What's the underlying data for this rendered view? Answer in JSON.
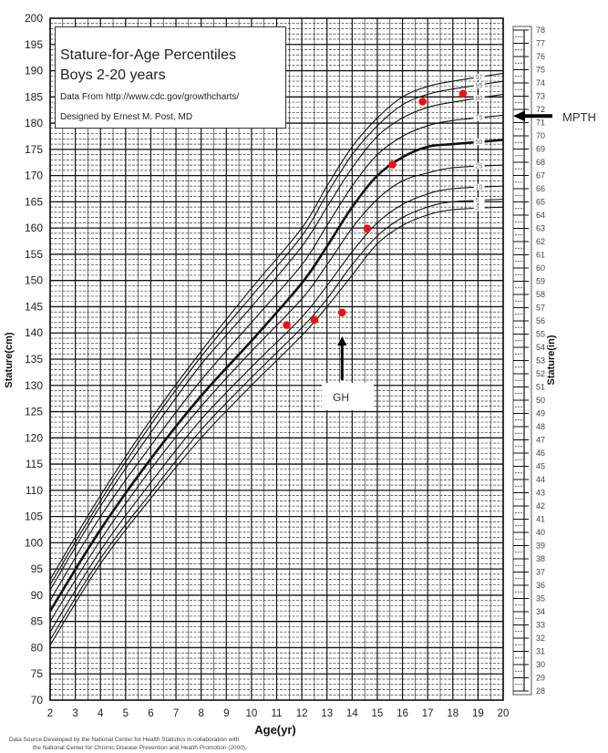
{
  "chart_data": {
    "type": "line",
    "title": "Stature-for-Age Percentiles",
    "subtitle": "Boys 2-20 years",
    "credits": [
      "Data From http://www.cdc.gov/growthcharts/",
      "Designed by Ernest M. Post, MD"
    ],
    "xlabel": "Age(yr)",
    "ylabel": "Stature(cm)",
    "y2label": "Stature(in)",
    "xlim": [
      2,
      20
    ],
    "ylim": [
      70,
      200
    ],
    "y2lim": [
      28,
      78
    ],
    "x_ticks": [
      2,
      3,
      4,
      5,
      6,
      7,
      8,
      9,
      10,
      11,
      12,
      13,
      14,
      15,
      16,
      17,
      18,
      19,
      20
    ],
    "y_ticks": [
      70,
      75,
      80,
      85,
      90,
      95,
      100,
      105,
      110,
      115,
      120,
      125,
      130,
      135,
      140,
      145,
      150,
      155,
      160,
      165,
      170,
      175,
      180,
      185,
      190,
      195,
      200
    ],
    "y2_ticks": [
      28,
      29,
      30,
      31,
      32,
      33,
      34,
      35,
      36,
      37,
      38,
      39,
      40,
      41,
      42,
      43,
      44,
      45,
      46,
      47,
      48,
      49,
      50,
      51,
      52,
      53,
      54,
      55,
      56,
      57,
      58,
      59,
      60,
      61,
      62,
      63,
      64,
      65,
      66,
      67,
      68,
      69,
      70,
      71,
      72,
      73,
      74,
      75,
      76,
      77,
      78
    ],
    "grid": true,
    "percentile_curves": [
      {
        "name": "3",
        "x": [
          2,
          4,
          6,
          8,
          10,
          12,
          13,
          14,
          15,
          16,
          17,
          18,
          20
        ],
        "y": [
          80.5,
          96,
          108.5,
          120,
          130,
          139.5,
          145,
          151,
          157,
          160.5,
          162.5,
          163.5,
          164
        ]
      },
      {
        "name": "5",
        "x": [
          2,
          4,
          6,
          8,
          10,
          12,
          13,
          14,
          15,
          16,
          17,
          18,
          20
        ],
        "y": [
          81.5,
          97,
          109.5,
          121.5,
          131.5,
          141,
          146.5,
          153,
          158.5,
          162,
          164,
          165,
          165.5
        ]
      },
      {
        "name": "10",
        "x": [
          2,
          4,
          6,
          8,
          10,
          12,
          13,
          14,
          15,
          16,
          17,
          18,
          20
        ],
        "y": [
          83,
          98.5,
          111.5,
          123.5,
          133.5,
          143,
          149,
          155.5,
          161,
          164.5,
          166.5,
          167.5,
          168
        ]
      },
      {
        "name": "25",
        "x": [
          2,
          4,
          6,
          8,
          10,
          12,
          13,
          14,
          15,
          16,
          17,
          18,
          20
        ],
        "y": [
          85,
          100.5,
          114,
          126,
          136.5,
          146.5,
          153,
          160,
          165.5,
          169,
          170.5,
          171.5,
          172
        ]
      },
      {
        "name": "50",
        "x": [
          2,
          4,
          6,
          8,
          10,
          12,
          13,
          14,
          15,
          16,
          17,
          18,
          20
        ],
        "y": [
          87,
          102.5,
          116,
          128,
          138.5,
          149.5,
          156.5,
          164,
          170,
          173.5,
          175.5,
          176,
          176.8
        ]
      },
      {
        "name": "75",
        "x": [
          2,
          4,
          6,
          8,
          10,
          12,
          13,
          14,
          15,
          16,
          17,
          18,
          20
        ],
        "y": [
          89,
          105,
          118.5,
          131,
          142,
          153,
          160.5,
          168,
          174,
          177.5,
          179.5,
          180.5,
          181.5
        ]
      },
      {
        "name": "90",
        "x": [
          2,
          4,
          6,
          8,
          10,
          12,
          13,
          14,
          15,
          16,
          17,
          18,
          20
        ],
        "y": [
          91,
          107,
          121,
          134,
          145,
          156.5,
          164,
          171.5,
          177.5,
          181,
          183,
          184,
          185.5
        ]
      },
      {
        "name": "95",
        "x": [
          2,
          4,
          6,
          8,
          10,
          12,
          13,
          14,
          15,
          16,
          17,
          18,
          20
        ],
        "y": [
          92,
          108,
          122.5,
          135.5,
          147,
          158.5,
          166.5,
          174,
          179.5,
          183.5,
          185.5,
          186.5,
          188
        ]
      },
      {
        "name": "97",
        "x": [
          2,
          4,
          6,
          8,
          10,
          12,
          13,
          14,
          15,
          16,
          17,
          18,
          20
        ],
        "y": [
          93,
          109,
          123.5,
          136.5,
          148.5,
          160,
          168,
          175.5,
          181,
          185,
          187,
          188,
          189.5
        ]
      }
    ],
    "patient_points": {
      "name": "Patient",
      "color": "#ee1111",
      "x": [
        11.4,
        12.5,
        13.6,
        14.6,
        15.6,
        16.8,
        18.4
      ],
      "y": [
        141.5,
        142.5,
        143.9,
        159.9,
        172.1,
        184.1,
        185.6
      ]
    },
    "annotations": [
      {
        "text": "GH",
        "type": "arrow-up",
        "x": 13.6,
        "y_from": 131,
        "y_to": 139
      },
      {
        "text": "MPTH",
        "type": "arrow-left",
        "y_in": 71.5
      }
    ],
    "footer": [
      "Data Source:Developed by the National Center for Health Statistics in collaboration with",
      "the National Center for Chronic Disease Prevention and Health Promotion (2000)."
    ]
  },
  "title_box": {
    "line1": "Stature-for-Age Percentiles",
    "line2": "Boys 2-20 years",
    "line3": "Data From http://www.cdc.gov/growthcharts/",
    "line4": "Designed by Ernest M. Post, MD"
  },
  "annotations": {
    "gh": "GH",
    "mpth": "MPTH"
  },
  "footer": {
    "line1": "Data Source:Developed by the National Center for Health Statistics in collaboration with",
    "line2": "the National Center for Chronic Disease Prevention and Health Promotion (2000)."
  }
}
